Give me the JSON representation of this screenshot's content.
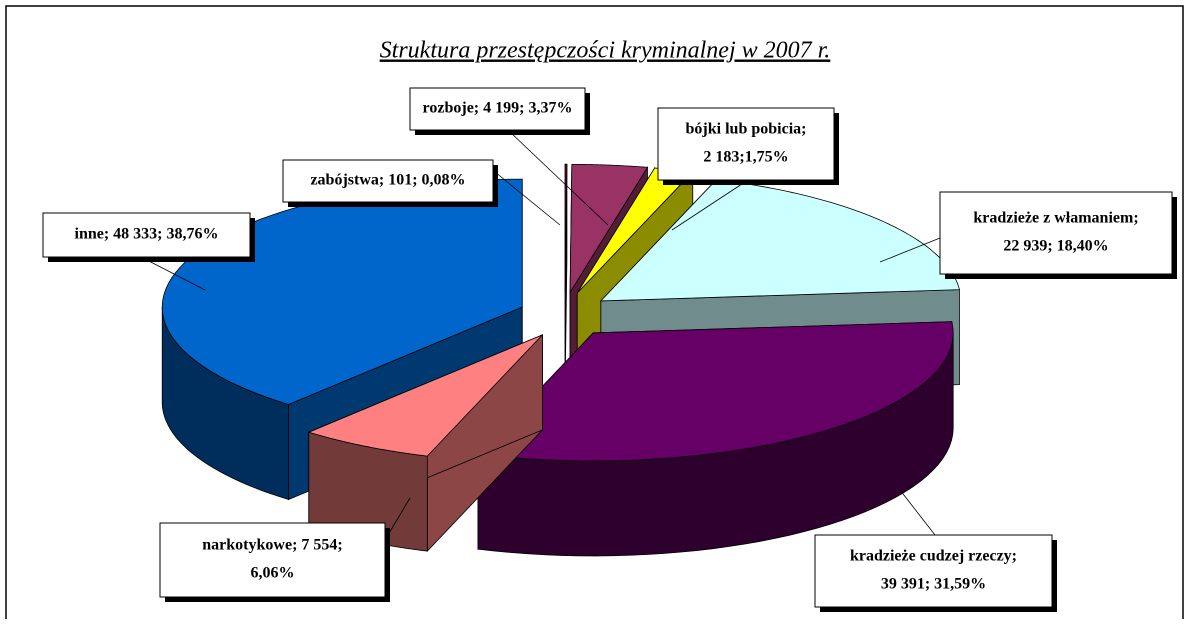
{
  "chart_data": {
    "type": "pie3d",
    "title": "Struktura przestępczości kryminalnej w 2007 r.",
    "categories": [
      "zabójstwa",
      "rozboje",
      "bójki lub pobicia",
      "kradzieże z włamaniem",
      "kradzieże cudzej rzeczy",
      "narkotykowe",
      "inne"
    ],
    "counts": [
      101,
      4199,
      2183,
      22939,
      39391,
      7554,
      48333
    ],
    "values": [
      0.08,
      3.37,
      1.75,
      18.4,
      31.59,
      6.06,
      38.76
    ],
    "value_labels": [
      [
        "zabójstwa; 101; 0,08%"
      ],
      [
        "rozboje; 4 199; 3,37%"
      ],
      [
        "bójki lub pobicia;",
        "2 183;1,75%"
      ],
      [
        "kradzieże z włamaniem;",
        "22 939; 18,40%"
      ],
      [
        "kradzieże cudzej rzeczy;",
        "39 391; 31,59%"
      ],
      [
        "narkotykowe; 7 554;",
        "6,06%"
      ],
      [
        "inne; 48 333; 38,76%"
      ]
    ],
    "colors": [
      "#6b1040",
      "#993366",
      "#ffff00",
      "#ccffff",
      "#660066",
      "#ff8080",
      "#0066cc"
    ]
  }
}
